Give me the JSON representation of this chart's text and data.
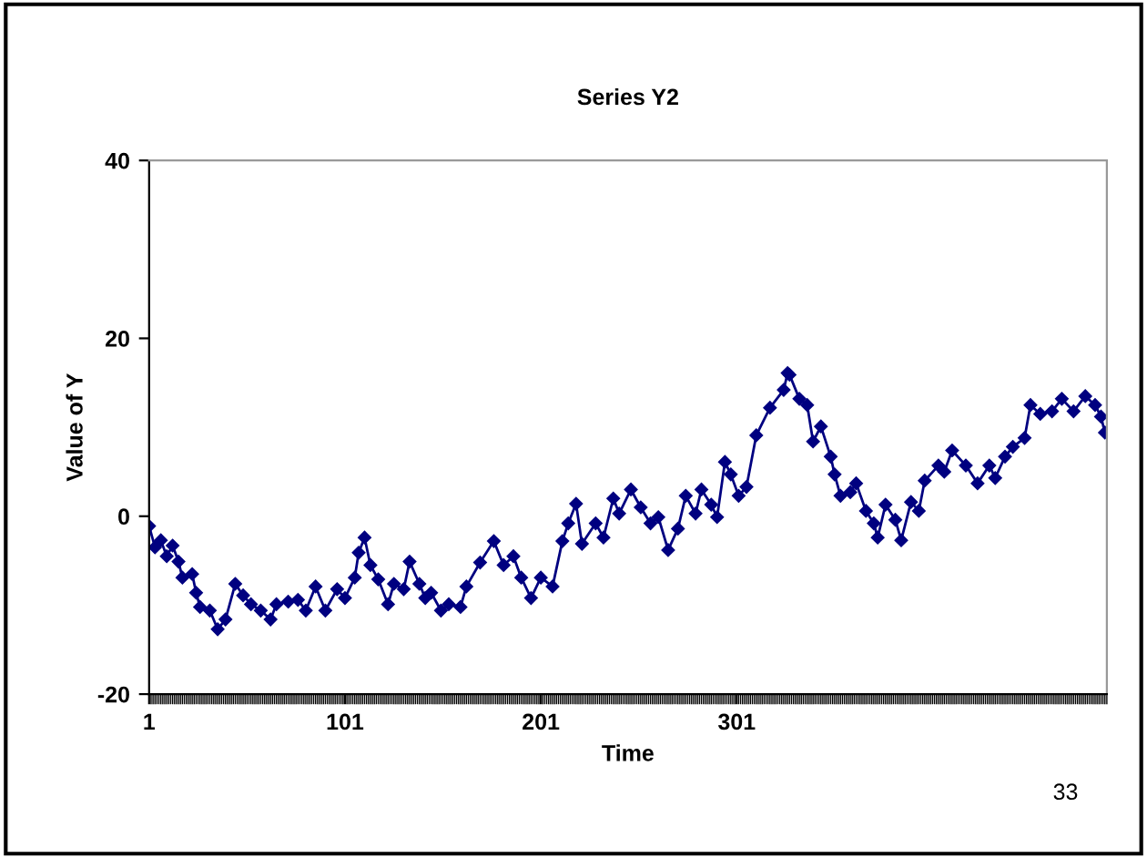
{
  "chart_data": {
    "type": "line",
    "title": "Series Y2",
    "xlabel": "Time",
    "ylabel": "Value of Y",
    "xlim": [
      1,
      490
    ],
    "xticks": [
      1,
      101,
      201,
      301
    ],
    "ylim": [
      -20,
      40
    ],
    "yticks": [
      -20,
      0,
      20,
      40
    ],
    "grid": false,
    "legend": false,
    "marker": "diamond",
    "line_style": "solid",
    "annotations": [
      "33"
    ],
    "series": [
      {
        "color": "#000080",
        "x": [
          1,
          4,
          7,
          10,
          13,
          16,
          18,
          23,
          25,
          27,
          32,
          36,
          40,
          45,
          49,
          53,
          58,
          63,
          66,
          72,
          77,
          81,
          86,
          91,
          97,
          101,
          106,
          108,
          111,
          114,
          118,
          123,
          126,
          131,
          134,
          139,
          142,
          145,
          150,
          154,
          160,
          163,
          170,
          177,
          182,
          187,
          191,
          196,
          201,
          207,
          212,
          215,
          219,
          222,
          229,
          233,
          238,
          241,
          247,
          252,
          257,
          261,
          266,
          271,
          275,
          280,
          283,
          288,
          291,
          295,
          298,
          302,
          306,
          311,
          318,
          325,
          327,
          328,
          333,
          337,
          340,
          344,
          349,
          351,
          354,
          359,
          362,
          367,
          371,
          373,
          377,
          382,
          385,
          390,
          394,
          397,
          404,
          407,
          411,
          418,
          424,
          430,
          433,
          438,
          442,
          448,
          451,
          456,
          462,
          467,
          473,
          479,
          484,
          487,
          489
        ],
        "values": [
          -1.1,
          -3.5,
          -2.7,
          -4.5,
          -3.3,
          -5.1,
          -6.9,
          -6.5,
          -8.6,
          -10.2,
          -10.6,
          -12.7,
          -11.6,
          -7.6,
          -8.9,
          -9.9,
          -10.6,
          -11.6,
          -9.9,
          -9.6,
          -9.4,
          -10.6,
          -7.9,
          -10.6,
          -8.2,
          -9.2,
          -6.9,
          -4.1,
          -2.4,
          -5.5,
          -7.1,
          -9.9,
          -7.6,
          -8.2,
          -5.1,
          -7.6,
          -9.2,
          -8.6,
          -10.6,
          -9.9,
          -10.2,
          -7.9,
          -5.2,
          -2.8,
          -5.5,
          -4.5,
          -6.9,
          -9.2,
          -6.9,
          -7.9,
          -2.8,
          -0.8,
          1.4,
          -3.1,
          -0.8,
          -2.4,
          2.0,
          0.3,
          3.0,
          1.0,
          -0.8,
          -0.1,
          -3.8,
          -1.4,
          2.3,
          0.3,
          3.0,
          1.3,
          -0.1,
          6.1,
          4.7,
          2.3,
          3.3,
          9.1,
          12.2,
          14.2,
          16.1,
          15.9,
          13.2,
          12.5,
          8.4,
          10.1,
          6.7,
          4.7,
          2.3,
          2.7,
          3.7,
          0.6,
          -0.8,
          -2.4,
          1.3,
          -0.4,
          -2.7,
          1.6,
          0.6,
          4.0,
          5.7,
          5.0,
          7.4,
          5.7,
          3.7,
          5.7,
          4.3,
          6.7,
          7.8,
          8.8,
          12.5,
          11.5,
          11.8,
          13.2,
          11.8,
          13.5,
          12.5,
          11.2,
          9.4
        ]
      }
    ]
  }
}
